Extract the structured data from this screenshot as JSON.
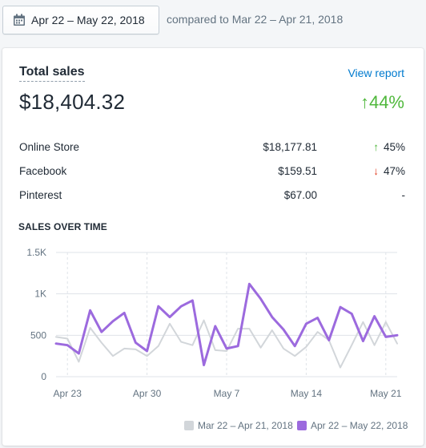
{
  "toolbar": {
    "date_range": "Apr 22 – May 22, 2018",
    "compared_text": "compared to Mar 22 – Apr 21, 2018"
  },
  "card": {
    "title": "Total sales",
    "view_report": "View report",
    "total": "$18,404.32",
    "total_change": "44%",
    "total_change_direction": "up",
    "channels": [
      {
        "name": "Online Store",
        "amount": "$18,177.81",
        "change": "45%",
        "direction": "up"
      },
      {
        "name": "Facebook",
        "amount": "$159.51",
        "change": "47%",
        "direction": "down"
      },
      {
        "name": "Pinterest",
        "amount": "$67.00",
        "change": "-",
        "direction": "none"
      }
    ],
    "section_title": "SALES OVER TIME"
  },
  "colors": {
    "current": "#9c6ade",
    "previous": "#d2d6da",
    "up": "#50b83c",
    "down": "#de3618",
    "link": "#007ace"
  },
  "chart_data": {
    "type": "line",
    "y_ticks": [
      "0",
      "500",
      "1K",
      "1.5K"
    ],
    "ylim": [
      0,
      1500
    ],
    "x_tick_labels": [
      "Apr 23",
      "Apr 30",
      "May 7",
      "May 14",
      "May 21"
    ],
    "x_tick_index": [
      1,
      8,
      15,
      22,
      29
    ],
    "grid": true,
    "legend_position": "bottom-right",
    "series": [
      {
        "name": "Mar 22 – Apr 21, 2018",
        "values": [
          480,
          460,
          180,
          590,
          410,
          250,
          340,
          330,
          250,
          370,
          640,
          420,
          380,
          680,
          320,
          310,
          580,
          580,
          350,
          560,
          340,
          250,
          360,
          540,
          440,
          110,
          380,
          660,
          380,
          660,
          400
        ]
      },
      {
        "name": "Apr 22 – May 22, 2018",
        "values": [
          400,
          380,
          280,
          800,
          540,
          670,
          770,
          410,
          310,
          850,
          720,
          850,
          920,
          140,
          610,
          340,
          370,
          1120,
          940,
          720,
          570,
          370,
          640,
          710,
          440,
          840,
          760,
          430,
          730,
          480,
          500
        ]
      }
    ]
  }
}
